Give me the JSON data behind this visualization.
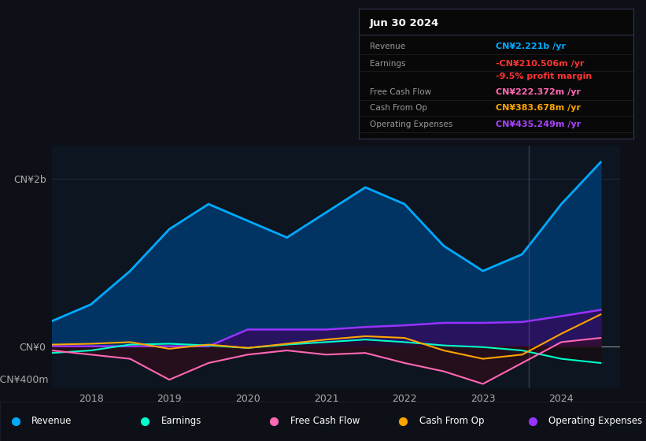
{
  "bg_color": "#0d1117",
  "plot_bg_color": "#0d1520",
  "ylabel_top": "CN¥2b",
  "ylabel_zero": "CN¥0",
  "ylabel_neg": "-CN¥400m",
  "x_ticks": [
    2018,
    2019,
    2020,
    2021,
    2022,
    2023,
    2024
  ],
  "ylim": [
    -500,
    2400
  ],
  "tooltip_title": "Jun 30 2024",
  "tooltip_rows": [
    {
      "label": "Revenue",
      "value": "CN¥2.221b /yr",
      "value_color": "#00aaff"
    },
    {
      "label": "Earnings",
      "value": "-CN¥210.506m /yr",
      "value_color": "#ff3333"
    },
    {
      "label": "",
      "value": "-9.5% profit margin",
      "value_color": "#ff3333"
    },
    {
      "label": "Free Cash Flow",
      "value": "CN¥222.372m /yr",
      "value_color": "#ff69b4"
    },
    {
      "label": "Cash From Op",
      "value": "CN¥383.678m /yr",
      "value_color": "#ffa500"
    },
    {
      "label": "Operating Expenses",
      "value": "CN¥435.249m /yr",
      "value_color": "#aa44ff"
    }
  ],
  "revenue_x": [
    2017.5,
    2018.0,
    2018.5,
    2019.0,
    2019.5,
    2020.0,
    2020.5,
    2021.0,
    2021.5,
    2022.0,
    2022.5,
    2023.0,
    2023.5,
    2024.0,
    2024.5
  ],
  "revenue_y": [
    300,
    500,
    900,
    1400,
    1700,
    1500,
    1300,
    1600,
    1900,
    1700,
    1200,
    900,
    1100,
    1700,
    2200
  ],
  "earnings_x": [
    2017.5,
    2018.0,
    2018.5,
    2019.0,
    2019.5,
    2020.0,
    2020.5,
    2021.0,
    2021.5,
    2022.0,
    2022.5,
    2023.0,
    2023.5,
    2024.0,
    2024.5
  ],
  "earnings_y": [
    -80,
    -50,
    20,
    30,
    10,
    -20,
    20,
    50,
    80,
    50,
    10,
    -10,
    -50,
    -150,
    -200
  ],
  "fcf_x": [
    2017.5,
    2018.0,
    2018.5,
    2019.0,
    2019.5,
    2020.0,
    2020.5,
    2021.0,
    2021.5,
    2022.0,
    2022.5,
    2023.0,
    2023.5,
    2024.0,
    2024.5
  ],
  "fcf_y": [
    -50,
    -100,
    -150,
    -400,
    -200,
    -100,
    -50,
    -100,
    -80,
    -200,
    -300,
    -450,
    -200,
    50,
    100
  ],
  "cop_x": [
    2017.5,
    2018.0,
    2018.5,
    2019.0,
    2019.5,
    2020.0,
    2020.5,
    2021.0,
    2021.5,
    2022.0,
    2022.5,
    2023.0,
    2023.5,
    2024.0,
    2024.5
  ],
  "cop_y": [
    20,
    30,
    50,
    -30,
    20,
    -20,
    30,
    80,
    120,
    100,
    -50,
    -150,
    -100,
    150,
    380
  ],
  "opex_x": [
    2017.5,
    2018.0,
    2018.5,
    2019.0,
    2019.5,
    2020.0,
    2020.5,
    2021.0,
    2021.5,
    2022.0,
    2022.5,
    2023.0,
    2023.5,
    2024.0,
    2024.5
  ],
  "opex_y": [
    0,
    0,
    0,
    0,
    0,
    200,
    200,
    200,
    230,
    250,
    280,
    280,
    290,
    360,
    435
  ],
  "revenue_color": "#00aaff",
  "revenue_fill": "#003a6e",
  "earnings_color": "#00ffcc",
  "fcf_color": "#ff69b4",
  "cop_color": "#ffa500",
  "opex_color": "#9933ff",
  "opex_fill": "#2d1060",
  "earnings_fill": "#1a0a0a",
  "fcf_fill": "#3d0a1a",
  "vertical_line_x": 2023.58,
  "grid_color": "#1e2d3d",
  "text_color": "#aaaaaa",
  "zero_line_color": "#ffffff",
  "legend": [
    {
      "label": "Revenue",
      "color": "#00aaff"
    },
    {
      "label": "Earnings",
      "color": "#00ffcc"
    },
    {
      "label": "Free Cash Flow",
      "color": "#ff69b4"
    },
    {
      "label": "Cash From Op",
      "color": "#ffa500"
    },
    {
      "label": "Operating Expenses",
      "color": "#9933ff"
    }
  ]
}
